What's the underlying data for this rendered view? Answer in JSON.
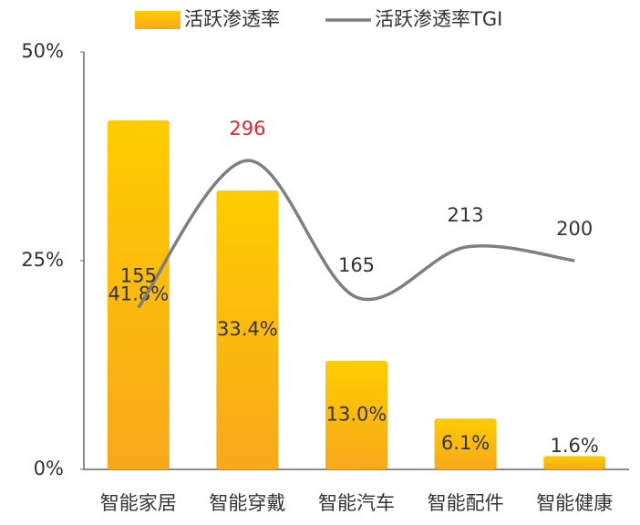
{
  "chart_data": {
    "type": "bar-line",
    "categories": [
      "智能家居",
      "智能穿戴",
      "智能汽车",
      "智能配件",
      "智能健康"
    ],
    "series": [
      {
        "name": "活跃渗透率",
        "type": "bar",
        "color": "#ffc000",
        "values": [
          41.8,
          33.4,
          13.0,
          6.1,
          1.6
        ],
        "value_labels": [
          "41.8%",
          "33.4%",
          "13.0%",
          "6.1%",
          "1.6%"
        ]
      },
      {
        "name": "活跃渗透率TGI",
        "type": "line",
        "axis": "y2",
        "color": "#7f7f7f",
        "values": [
          155,
          296,
          165,
          213,
          200
        ],
        "label_colors": [
          "#333333",
          "#e8232a",
          "#333333",
          "#333333",
          "#333333"
        ]
      }
    ],
    "ylim": [
      0,
      50
    ],
    "yticks": [
      {
        "value": 0,
        "label": "0%"
      },
      {
        "value": 25,
        "label": "25%"
      },
      {
        "value": 50,
        "label": "50%"
      }
    ],
    "y2lim": [
      0,
      400
    ],
    "legend": "top"
  }
}
